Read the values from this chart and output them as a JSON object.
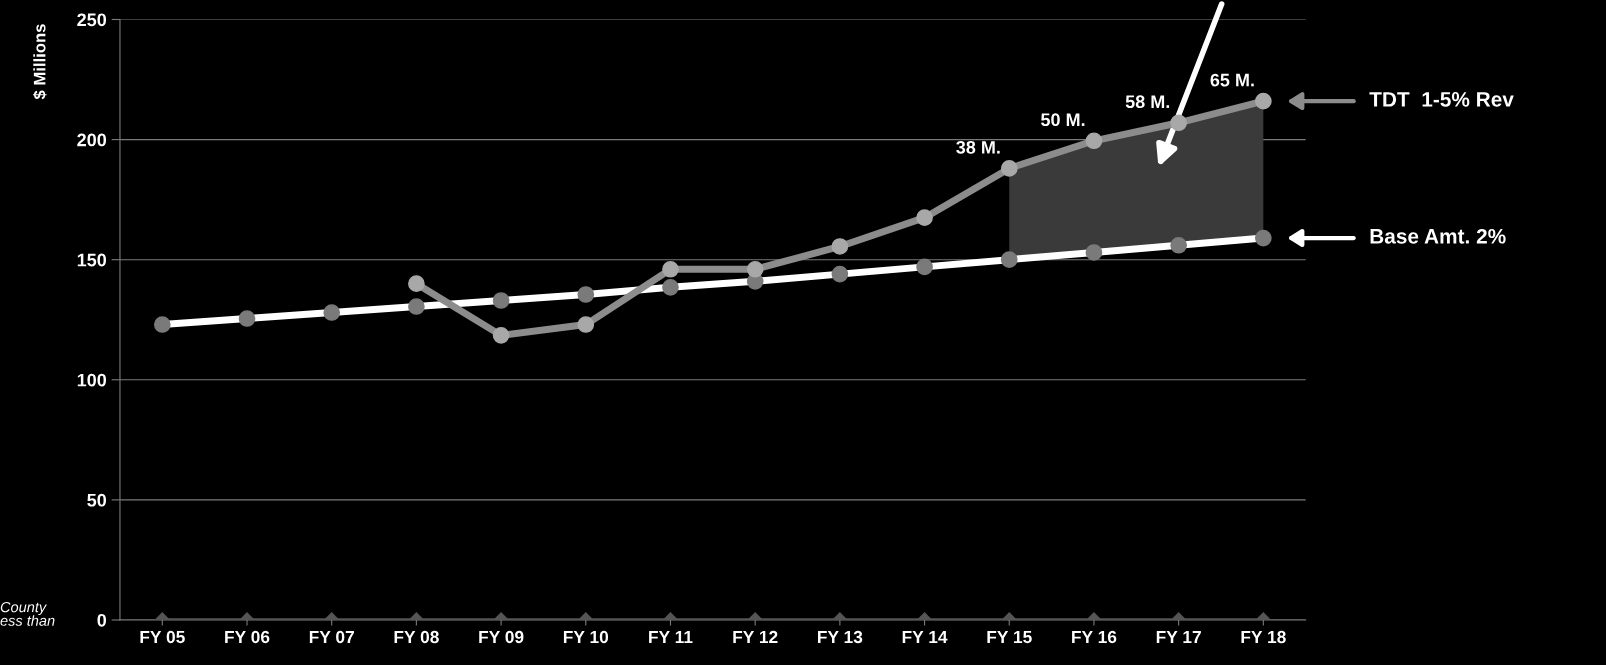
{
  "chart_data": {
    "type": "line",
    "ylabel": "$ Millions",
    "categories": [
      "FY 05",
      "FY 06",
      "FY 07",
      "FY 08",
      "FY 09",
      "FY 10",
      "FY 11",
      "FY 12",
      "FY 13",
      "FY 14",
      "FY 15",
      "FY 16",
      "FY 17",
      "FY 18"
    ],
    "series": [
      {
        "name": "Base Amt. 2%",
        "color": "#ffffff",
        "marker": "circle",
        "values": [
          123,
          125.5,
          128,
          130.5,
          133,
          135.5,
          138.5,
          141,
          144,
          147,
          150,
          153,
          156,
          159
        ]
      },
      {
        "name": "TDT  1-5% Rev",
        "color": "#8c8c8c",
        "marker": "circle",
        "values": [
          null,
          null,
          null,
          140,
          118.5,
          123,
          146,
          146,
          155.5,
          167.5,
          188,
          199.5,
          207,
          216
        ],
        "lower": [
          null,
          null,
          null,
          null,
          null,
          null,
          null,
          null,
          null,
          null,
          150,
          153,
          156,
          159
        ],
        "upper": [
          null,
          null,
          null,
          null,
          null,
          null,
          null,
          null,
          null,
          null,
          188,
          199.5,
          207,
          216
        ]
      },
      {
        "color": "#555555",
        "marker": "diamond",
        "values": [
          0,
          0,
          0,
          0,
          0,
          0,
          0,
          0,
          0,
          0,
          0,
          0,
          0,
          0
        ]
      }
    ],
    "ylim": [
      0,
      250
    ],
    "yticks": [
      0,
      50,
      100,
      150,
      200,
      250
    ],
    "grid": "y",
    "legend": "right",
    "annotations": [
      {
        "text": "38 M.",
        "x": "FY 15",
        "y": 188
      },
      {
        "text": "50 M.",
        "x": "FY 16",
        "y": 199.5
      },
      {
        "text": "58 M.",
        "x": "FY 17",
        "y": 207
      },
      {
        "text": "65 M.",
        "x": "FY 18",
        "y": 216
      },
      "County\ness than"
    ]
  }
}
